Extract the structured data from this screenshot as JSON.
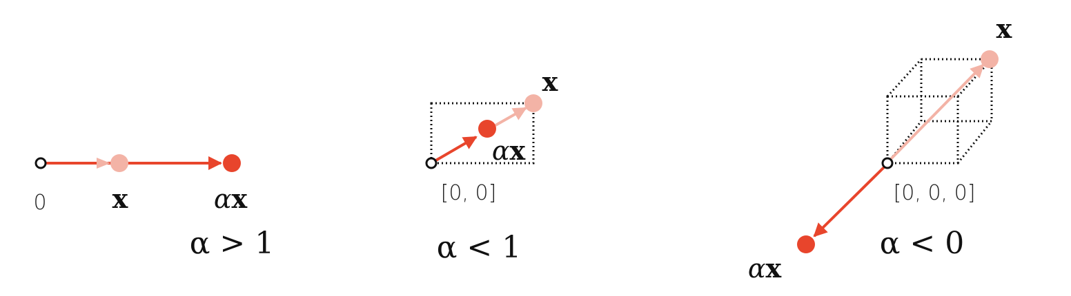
{
  "colors": {
    "accent": "#e8452c",
    "accent_light": "#f3b3a6",
    "guide": "#111111"
  },
  "panel1": {
    "origin_label": "0",
    "x_label": "x",
    "alpha_label": "α",
    "ax_vec_label": "x",
    "condition": "α > 1"
  },
  "panel2": {
    "x_label": "x",
    "alpha_label": "α",
    "ax_vec_label": "x",
    "origin_label": "[0, 0]",
    "condition": "α < 1"
  },
  "panel3": {
    "x_label": "x",
    "origin_label": "[0, 0, 0]",
    "alpha_label": "α",
    "ax_vec_label": "x",
    "condition": "α < 0"
  }
}
